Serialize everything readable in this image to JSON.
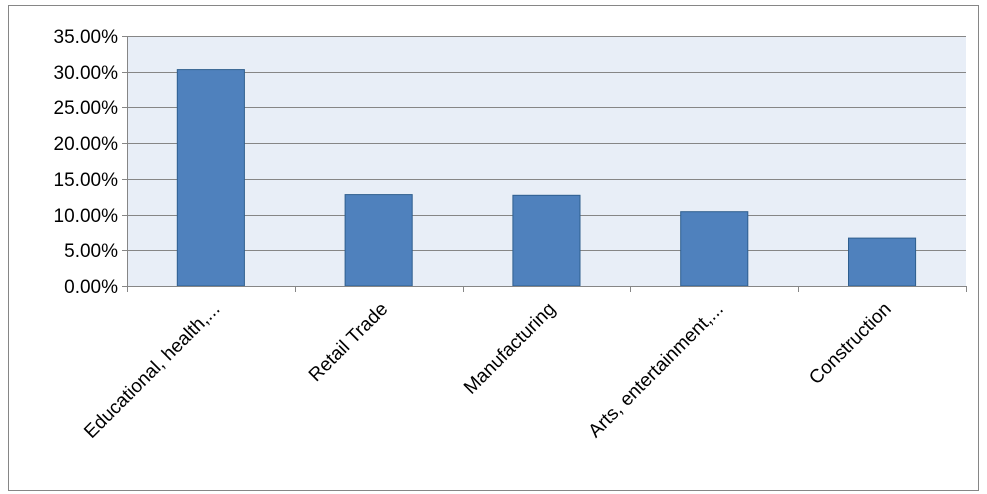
{
  "chart_data": {
    "type": "bar",
    "title": "",
    "xlabel": "",
    "ylabel": "",
    "categories": [
      "Educational, health,...",
      "Retail Trade",
      "Manufacturing",
      "Arts, entertainment,...",
      "Construction"
    ],
    "values": [
      30.3,
      12.8,
      12.7,
      10.4,
      6.7
    ],
    "y_tick_labels": [
      "0.00%",
      "5.00%",
      "10.00%",
      "15.00%",
      "20.00%",
      "25.00%",
      "30.00%",
      "35.00%"
    ],
    "ylim": [
      0,
      35
    ],
    "y_major_step": 5,
    "y_unit": "percent",
    "grid": "horizontal",
    "legend": "none",
    "colors": {
      "bar_fill": "#4F81BD",
      "bar_stroke": "#2E5E8E",
      "plot_background": "#E8EEF7",
      "gridline": "#868686",
      "axis": "#868686",
      "frame_border": "#868686"
    }
  }
}
